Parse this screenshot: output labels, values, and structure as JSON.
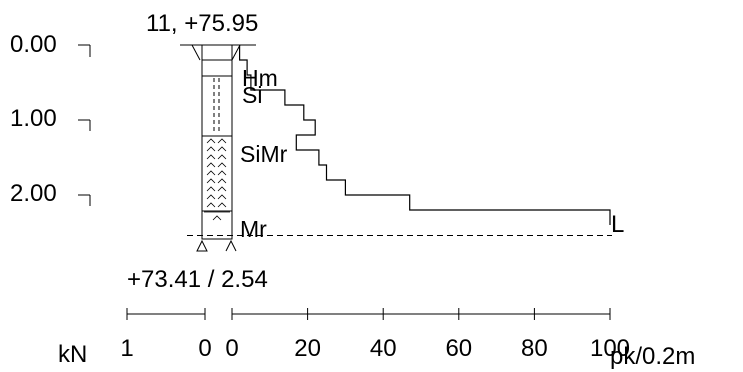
{
  "header": {
    "point_label": "11, +75.95"
  },
  "depth_axis": {
    "labels": [
      "0.00",
      "1.00",
      "2.00"
    ]
  },
  "soil_layers": [
    {
      "code": "Hm",
      "from": 0.0,
      "to": 0.2
    },
    {
      "code": "Si",
      "from": 0.2,
      "to": 1.2
    },
    {
      "code": "SiMr",
      "from": 1.2,
      "to": 2.2
    },
    {
      "code": "Mr",
      "from": 2.2,
      "to": 2.54
    }
  ],
  "bottom_label": "+73.41 / 2.54",
  "end_marker": "L",
  "left_scale": {
    "unit": "kN",
    "tick_labels": [
      "1",
      "0"
    ]
  },
  "right_scale": {
    "unit": "pk/0.2m",
    "tick_labels": [
      "0",
      "20",
      "40",
      "60",
      "80",
      "100"
    ]
  },
  "chart_data": {
    "type": "step",
    "xlabel": "pk/0.2m",
    "ylabel": "",
    "depth_unit": "m",
    "xlim": [
      0,
      100
    ],
    "ylim": [
      0,
      2.54
    ],
    "blows_per_02m": [
      {
        "from": 0.0,
        "to": 0.2,
        "value": 2
      },
      {
        "from": 0.2,
        "to": 0.4,
        "value": 4
      },
      {
        "from": 0.4,
        "to": 0.6,
        "value": 5
      },
      {
        "from": 0.6,
        "to": 0.8,
        "value": 14
      },
      {
        "from": 0.8,
        "to": 1.0,
        "value": 19
      },
      {
        "from": 1.0,
        "to": 1.2,
        "value": 22
      },
      {
        "from": 1.2,
        "to": 1.4,
        "value": 17
      },
      {
        "from": 1.4,
        "to": 1.6,
        "value": 23
      },
      {
        "from": 1.6,
        "to": 1.8,
        "value": 25
      },
      {
        "from": 1.8,
        "to": 2.0,
        "value": 30
      },
      {
        "from": 2.0,
        "to": 2.2,
        "value": 47
      },
      {
        "from": 2.2,
        "to": 2.4,
        "value": 100
      }
    ],
    "termination_depth": 2.54,
    "termination_code": "L"
  }
}
